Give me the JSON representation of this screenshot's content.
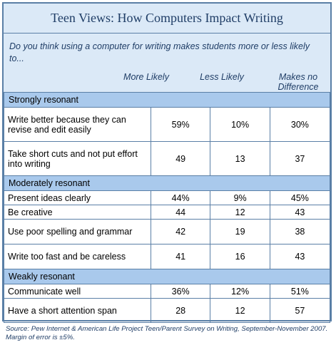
{
  "title": "Teen Views: How Computers Impact Writing",
  "question": "Do you think using a computer for writing makes students more or less likely to...",
  "columns": [
    "More Likely",
    "Less Likely",
    "Makes no Difference"
  ],
  "sections": [
    {
      "name": "Strongly  resonant",
      "rows": [
        {
          "label": "Write better because they can revise and edit easily",
          "values": [
            "59%",
            "10%",
            "30%"
          ]
        },
        {
          "label": "Take short cuts and not put effort into writing",
          "values": [
            "49",
            "13",
            "37"
          ]
        }
      ]
    },
    {
      "name": "Moderately resonant",
      "rows": [
        {
          "label": "Present ideas clearly",
          "values": [
            "44%",
            "9%",
            "45%"
          ]
        },
        {
          "label": "Be creative",
          "values": [
            "44",
            "12",
            "43"
          ]
        },
        {
          "label": "Use poor spelling and grammar",
          "values": [
            "42",
            "19",
            "38"
          ]
        },
        {
          "label": "Write too fast and be careless",
          "values": [
            "41",
            "16",
            "43"
          ]
        }
      ]
    },
    {
      "name": "Weakly resonant",
      "rows": [
        {
          "label": "Communicate well",
          "values": [
            "36%",
            "12%",
            "51%"
          ]
        },
        {
          "label": "Have a short attention span",
          "values": [
            "28",
            "12",
            "57"
          ]
        }
      ]
    }
  ],
  "source": "Source:  Pew Internet & American Life Project Teen/Parent Survey on Writing, September-November 2007.  Margin of error is ±5%."
}
